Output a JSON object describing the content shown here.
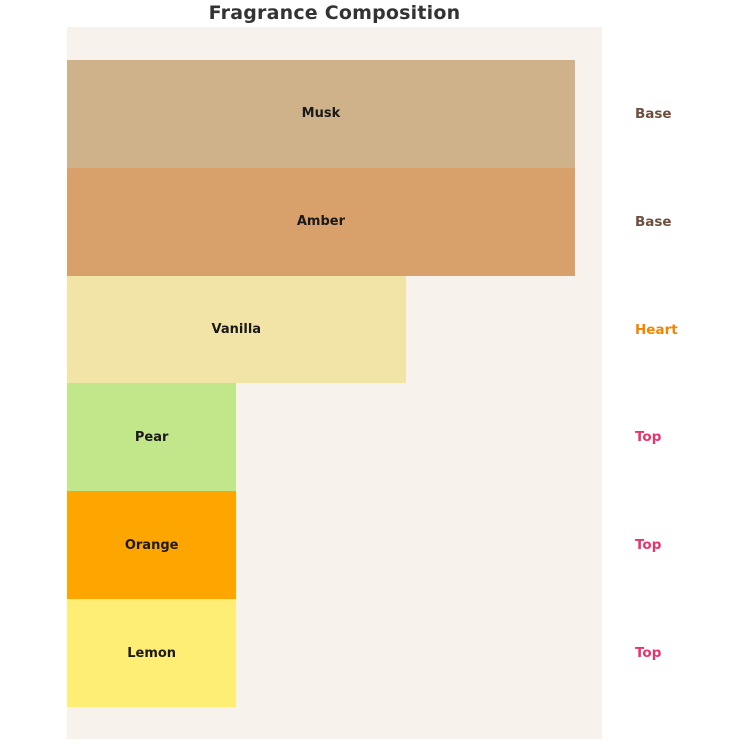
{
  "page": {
    "background_color": "#ffffff"
  },
  "chart_data": {
    "type": "bar",
    "orientation": "horizontal",
    "title": "Fragrance Composition",
    "title_color": "#333333",
    "plot_background": "#F7F2EC",
    "grid": false,
    "axes_visible": false,
    "xlim": [
      0,
      31.6
    ],
    "categories": [
      "Musk",
      "Amber",
      "Vanilla",
      "Pear",
      "Orange",
      "Lemon"
    ],
    "values": [
      30,
      30,
      20,
      10,
      10,
      10
    ],
    "bar_label_color": "#1a1a1a",
    "legend_position": "right-of-plot",
    "bars": [
      {
        "label": "Musk",
        "value": 30,
        "color": "#D0B28A",
        "stage": "Base"
      },
      {
        "label": "Amber",
        "value": 30,
        "color": "#D8A06B",
        "stage": "Base"
      },
      {
        "label": "Vanilla",
        "value": 20,
        "color": "#F2E4A6",
        "stage": "Heart"
      },
      {
        "label": "Pear",
        "value": 10,
        "color": "#C1E78A",
        "stage": "Top"
      },
      {
        "label": "Orange",
        "value": 10,
        "color": "#FFA500",
        "stage": "Top"
      },
      {
        "label": "Lemon",
        "value": 10,
        "color": "#FFEE75",
        "stage": "Top"
      }
    ],
    "stage_colors": {
      "Base": "#6F4E3E",
      "Heart": "#F28500",
      "Top": "#E8336D"
    }
  }
}
